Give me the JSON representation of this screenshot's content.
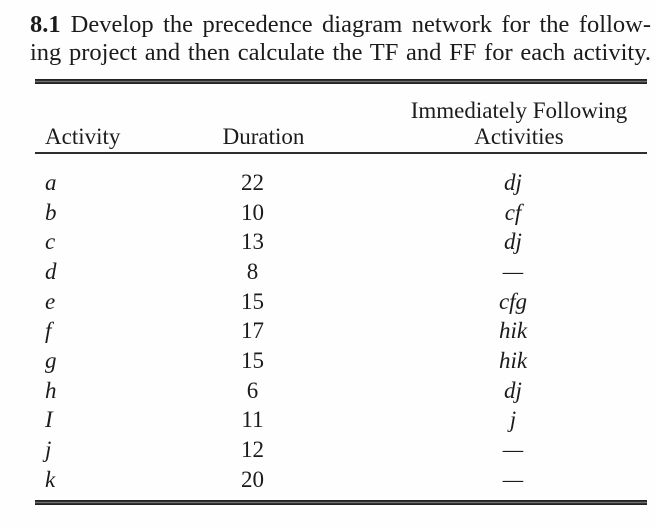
{
  "colors": {
    "ink": "#1b1b1b",
    "rule": "#2e2e2e",
    "paper": "#fefefe"
  },
  "problem": {
    "number": "8.1",
    "statement_line1": "Develop the precedence diagram network for the follow-",
    "statement_line2": "ing project and then calculate the TF and FF for each activity."
  },
  "table": {
    "headers": {
      "activity": "Activity",
      "duration": "Duration",
      "following_line1": "Immediately Following",
      "following_line2": "Activities"
    },
    "rows": [
      {
        "activity": "a",
        "duration": "22",
        "following": "dj"
      },
      {
        "activity": "b",
        "duration": "10",
        "following": "cf"
      },
      {
        "activity": "c",
        "duration": "13",
        "following": "dj"
      },
      {
        "activity": "d",
        "duration": "8",
        "following": "—"
      },
      {
        "activity": "e",
        "duration": "15",
        "following": "cfg"
      },
      {
        "activity": "f",
        "duration": "17",
        "following": "hik"
      },
      {
        "activity": "g",
        "duration": "15",
        "following": "hik"
      },
      {
        "activity": "h",
        "duration": "6",
        "following": "dj"
      },
      {
        "activity": "I",
        "duration": "11",
        "following": "j"
      },
      {
        "activity": "j",
        "duration": "12",
        "following": "—"
      },
      {
        "activity": "k",
        "duration": "20",
        "following": "—"
      }
    ]
  }
}
